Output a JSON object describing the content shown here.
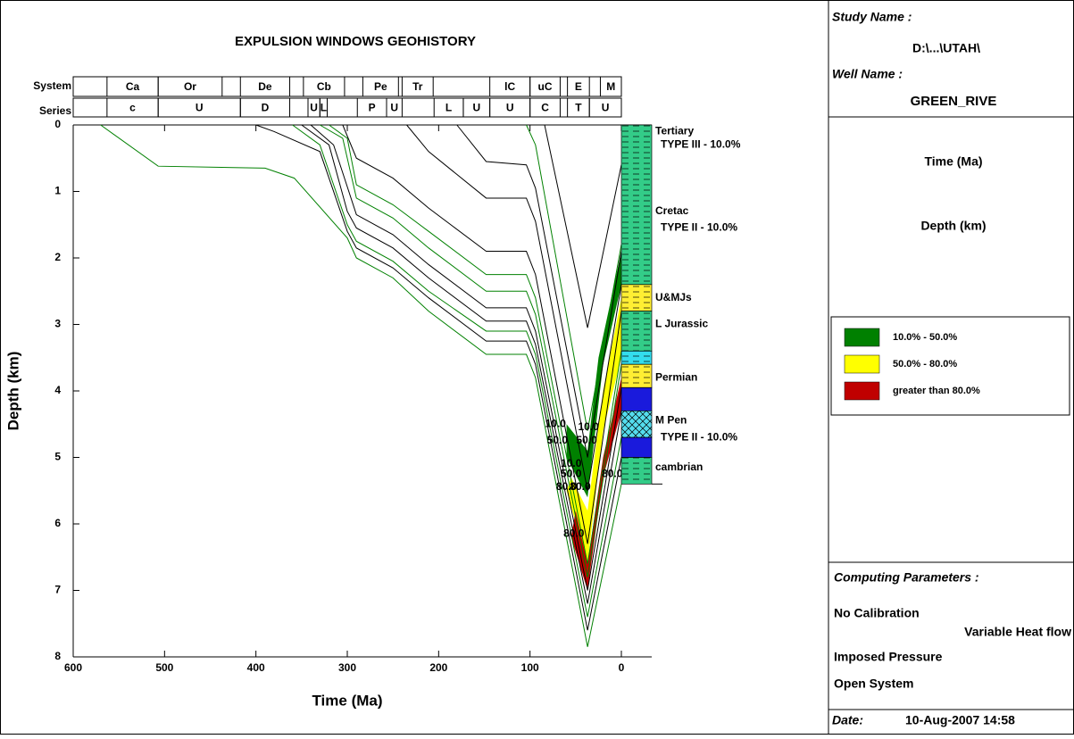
{
  "chart_data": {
    "type": "line",
    "title": "EXPULSION WINDOWS GEOHISTORY",
    "x_label": "Time (Ma)",
    "y_label": "Depth (km)",
    "xlim": [
      600,
      0
    ],
    "ylim": [
      0,
      8
    ],
    "xticks": [
      600,
      500,
      400,
      300,
      200,
      100,
      0
    ],
    "yticks": [
      0,
      1,
      2,
      3,
      4,
      5,
      6,
      7,
      8
    ],
    "system_label": "System",
    "series_label": "Series",
    "system": [
      {
        "label": "Ca",
        "from": 563,
        "to": 507
      },
      {
        "label": "Or",
        "from": 507,
        "to": 437
      },
      {
        "label": "De",
        "from": 417,
        "to": 363
      },
      {
        "label": "Cb",
        "from": 348,
        "to": 303
      },
      {
        "label": "Pe",
        "from": 283,
        "to": 244
      },
      {
        "label": "Tr",
        "from": 240,
        "to": 206
      },
      {
        "label": "lC",
        "from": 144,
        "to": 100
      },
      {
        "label": "uC",
        "from": 100,
        "to": 67
      },
      {
        "label": "E",
        "from": 59,
        "to": 35
      },
      {
        "label": "M",
        "from": 23,
        "to": 0
      }
    ],
    "series_row": [
      {
        "label": "c",
        "from": 563,
        "to": 507
      },
      {
        "label": "U",
        "from": 507,
        "to": 417
      },
      {
        "label": "D",
        "from": 417,
        "to": 363
      },
      {
        "label": "U",
        "from": 343,
        "to": 330
      },
      {
        "label": "L",
        "from": 330,
        "to": 322
      },
      {
        "label": "P",
        "from": 289,
        "to": 257
      },
      {
        "label": "U",
        "from": 257,
        "to": 240
      },
      {
        "label": "L",
        "from": 205,
        "to": 173
      },
      {
        "label": "U",
        "from": 173,
        "to": 144
      },
      {
        "label": "U",
        "from": 144,
        "to": 100
      },
      {
        "label": "C",
        "from": 100,
        "to": 67
      },
      {
        "label": "T",
        "from": 59,
        "to": 35
      },
      {
        "label": "U",
        "from": 35,
        "to": 0
      }
    ],
    "burial_curves": [
      {
        "color": "#008000",
        "x": [
          570,
          507,
          390,
          358,
          300,
          290,
          250,
          211,
          148,
          104,
          94,
          37,
          0
        ],
        "values": [
          0,
          0.62,
          0.65,
          0.8,
          1.7,
          2.0,
          2.3,
          2.8,
          3.45,
          3.45,
          3.8,
          7.85,
          5.4
        ]
      },
      {
        "color": "#000000",
        "x": [
          400,
          380,
          330,
          300,
          290,
          250,
          211,
          148,
          104,
          94,
          37,
          0
        ],
        "values": [
          0,
          0.1,
          0.4,
          1.6,
          1.85,
          2.15,
          2.6,
          3.25,
          3.25,
          3.6,
          7.6,
          5.0
        ]
      },
      {
        "color": "#008000",
        "x": [
          360,
          330,
          300,
          290,
          250,
          211,
          148,
          104,
          94,
          37,
          0
        ],
        "values": [
          0,
          0.3,
          1.5,
          1.75,
          2.05,
          2.5,
          3.1,
          3.1,
          3.45,
          7.4,
          4.7
        ]
      },
      {
        "color": "#000000",
        "x": [
          350,
          320,
          300,
          290,
          250,
          211,
          148,
          104,
          94,
          37,
          0
        ],
        "values": [
          0,
          0.3,
          1.3,
          1.55,
          1.85,
          2.3,
          2.95,
          2.95,
          3.3,
          7.2,
          4.3
        ]
      },
      {
        "color": "#000000",
        "x": [
          340,
          315,
          290,
          250,
          211,
          148,
          104,
          94,
          37,
          0
        ],
        "values": [
          0,
          0.3,
          1.35,
          1.65,
          2.1,
          2.75,
          2.75,
          3.1,
          7.0,
          3.95
        ]
      },
      {
        "color": "#008000",
        "x": [
          330,
          305,
          290,
          250,
          211,
          148,
          104,
          94,
          37,
          0
        ],
        "values": [
          0,
          0.2,
          1.1,
          1.4,
          1.85,
          2.5,
          2.5,
          2.85,
          6.8,
          3.6
        ]
      },
      {
        "color": "#008000",
        "x": [
          320,
          300,
          290,
          250,
          211,
          148,
          104,
          94,
          37,
          0
        ],
        "values": [
          0,
          0.2,
          0.9,
          1.2,
          1.6,
          2.25,
          2.25,
          2.6,
          6.6,
          3.4
        ]
      },
      {
        "color": "#000000",
        "x": [
          305,
          290,
          250,
          211,
          148,
          104,
          94,
          37,
          0
        ],
        "values": [
          0,
          0.5,
          0.8,
          1.25,
          1.9,
          1.9,
          2.25,
          6.3,
          2.8
        ]
      },
      {
        "color": "#000000",
        "x": [
          235,
          211,
          148,
          104,
          94,
          37,
          0
        ],
        "values": [
          0,
          0.4,
          1.1,
          1.1,
          1.45,
          5.5,
          2.4
        ]
      },
      {
        "color": "#000000",
        "x": [
          180,
          148,
          104,
          94,
          37,
          0
        ],
        "values": [
          0,
          0.55,
          0.6,
          0.95,
          5.0,
          1.9
        ]
      },
      {
        "color": "#008000",
        "x": [
          104,
          94,
          37,
          0
        ],
        "values": [
          0,
          0.3,
          4.6,
          1.8
        ]
      },
      {
        "color": "#000000",
        "x": [
          84,
          37,
          0
        ],
        "values": [
          0,
          3.05,
          0.6
        ]
      }
    ],
    "windows": [
      {
        "color": "#008000",
        "x": [
          60,
          37,
          25,
          0,
          0,
          20,
          37,
          60
        ],
        "values": [
          4.5,
          4.9,
          3.5,
          1.9,
          2.4,
          3.6,
          5.6,
          5.0
        ]
      },
      {
        "color": "#ffff00",
        "x": [
          55,
          37,
          20,
          0,
          0,
          20,
          37,
          60
        ],
        "values": [
          5.3,
          5.8,
          4.0,
          2.6,
          3.5,
          4.6,
          6.6,
          5.5
        ]
      },
      {
        "color": "#c00000",
        "x": [
          50,
          37,
          20,
          0,
          0,
          20,
          37,
          55
        ],
        "values": [
          5.8,
          6.6,
          5.0,
          3.8,
          4.3,
          5.3,
          7.0,
          6.2
        ]
      }
    ],
    "window_labels": [
      {
        "text": "10.0",
        "x": 72,
        "y": 4.5
      },
      {
        "text": "10.0",
        "x": 36,
        "y": 4.55
      },
      {
        "text": "50.0",
        "x": 70,
        "y": 4.75
      },
      {
        "text": "50.0",
        "x": 38,
        "y": 4.75
      },
      {
        "text": "10.0",
        "x": 55,
        "y": 5.1
      },
      {
        "text": "50.0",
        "x": 55,
        "y": 5.25
      },
      {
        "text": "80.0",
        "x": 10,
        "y": 5.25
      },
      {
        "text": "80.0",
        "x": 60,
        "y": 5.45
      },
      {
        "text": "80.0",
        "x": 45,
        "y": 5.45
      },
      {
        "text": "80.0",
        "x": 52,
        "y": 6.15
      }
    ],
    "column": [
      {
        "top": 0,
        "bottom": 2.4,
        "color": "#33cc88"
      },
      {
        "top": 2.4,
        "bottom": 2.8,
        "color": "#ffee33"
      },
      {
        "top": 2.8,
        "bottom": 3.4,
        "color": "#33cc88"
      },
      {
        "top": 3.4,
        "bottom": 3.6,
        "color": "#33ddee"
      },
      {
        "top": 3.6,
        "bottom": 3.95,
        "color": "#ffee33"
      },
      {
        "top": 3.95,
        "bottom": 4.3,
        "color": "#1a1adc"
      },
      {
        "top": 4.3,
        "bottom": 4.7,
        "color": "#55ddee"
      },
      {
        "top": 4.7,
        "bottom": 5.0,
        "color": "#1a1adc"
      },
      {
        "top": 5.0,
        "bottom": 5.4,
        "color": "#33cc88"
      }
    ],
    "column_labels": [
      {
        "text": "Tertiary",
        "depth": 0.1,
        "color": "#0000ff"
      },
      {
        "text": "TYPE III - 10.0%",
        "depth": 0.3,
        "color": "#0000ff"
      },
      {
        "text": "Cretac",
        "depth": 1.3,
        "color": "#0000ff"
      },
      {
        "text": "TYPE II - 10.0%",
        "depth": 1.55,
        "color": "#0000ff"
      },
      {
        "text": "U&MJs",
        "depth": 2.6,
        "color": "#000000"
      },
      {
        "text": "L Jurassic",
        "depth": 3.0,
        "color": "#000000"
      },
      {
        "text": "Permian",
        "depth": 3.8,
        "color": "#000000"
      },
      {
        "text": "M Pen",
        "depth": 4.45,
        "color": "#0000ff"
      },
      {
        "text": "TYPE II - 10.0%",
        "depth": 4.7,
        "color": "#0000ff"
      },
      {
        "text": "cambrian",
        "depth": 5.15,
        "color": "#000000"
      }
    ],
    "legend": [
      {
        "label": "10.0% - 50.0%",
        "color": "#008000"
      },
      {
        "label": "50.0% - 80.0%",
        "color": "#ffff00"
      },
      {
        "label": "greater than 80.0%",
        "color": "#c00000"
      }
    ]
  },
  "side_panel": {
    "study_label": "Study Name :",
    "study_name": "D:\\...\\UTAH\\",
    "well_label": "Well Name :",
    "well_name": "GREEN_RIVE",
    "x_param": "Time (Ma)",
    "y_param": "Depth (km)",
    "computing_label": "Computing Parameters :",
    "params": [
      "No Calibration",
      "Variable Heat flow",
      "Imposed Pressure",
      "Open System"
    ],
    "date_label": "Date:",
    "date": "10-Aug-2007  14:58"
  }
}
